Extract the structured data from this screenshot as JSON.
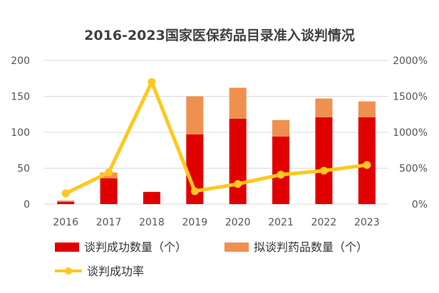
{
  "chart_data": {
    "type": "bar",
    "title": "2016-2023国家医保药品目录准入谈判情况",
    "categories": [
      "2016",
      "2017",
      "2018",
      "2019",
      "2020",
      "2021",
      "2022",
      "2023"
    ],
    "series": [
      {
        "name": "谈判成功数量（个）",
        "kind": "bar",
        "axis": "left",
        "stack": "main",
        "values": [
          3,
          36,
          17,
          97,
          119,
          94,
          121,
          121
        ]
      },
      {
        "name": "拟谈判药品数量（个）",
        "kind": "bar",
        "axis": "left",
        "stack": "main",
        "values": [
          2,
          8,
          0,
          53,
          43,
          23,
          26,
          22
        ]
      },
      {
        "name": "谈判成功率",
        "kind": "line",
        "axis": "right",
        "values": [
          150,
          440,
          1700,
          180,
          280,
          410,
          465,
          545
        ]
      }
    ],
    "y_left": {
      "range": [
        0,
        200
      ],
      "ticks": [
        "0",
        "50",
        "100",
        "150",
        "200"
      ]
    },
    "y_right": {
      "range": [
        0,
        2000
      ],
      "ticks": [
        "0%",
        "500%",
        "1000%",
        "1500%",
        "2000%"
      ]
    },
    "grid": true,
    "legend_position": "bottom",
    "colors": {
      "bar_success": "#e00000",
      "bar_planned": "#f0904f",
      "line": "#ffc81e",
      "grid": "#d9d9d9",
      "title": "#404040"
    }
  }
}
